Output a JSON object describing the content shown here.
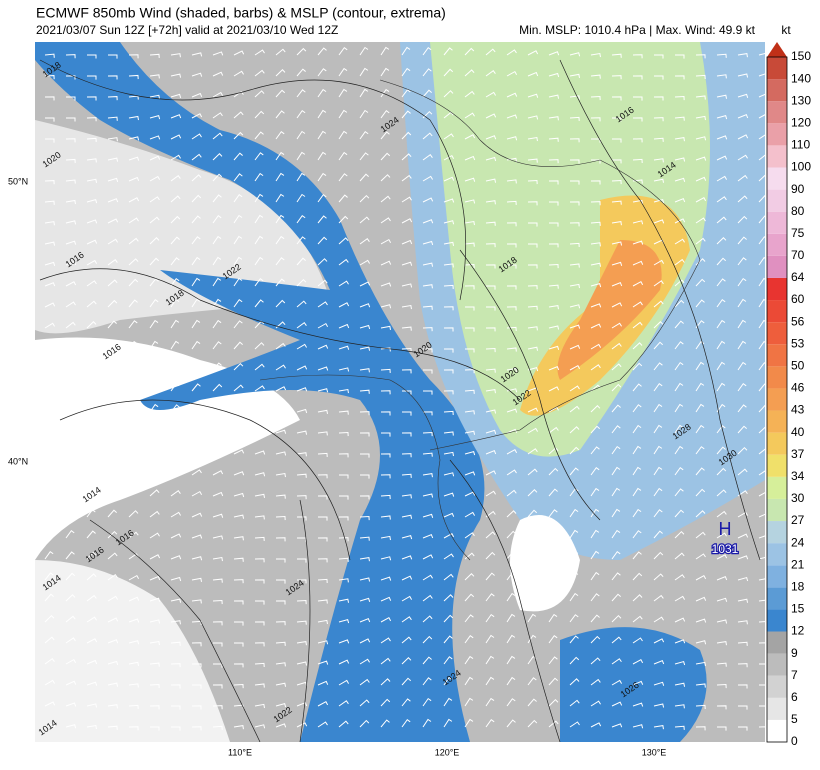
{
  "header": {
    "title": "ECMWF 850mb Wind (shaded, barbs) & MSLP (contour, extrema)",
    "subtitle": "2021/03/07 Sun 12Z [+72h] valid at 2021/03/10 Wed 12Z",
    "info": "Min. MSLP: 1010.4 hPa | Max. Wind: 49.9 kt"
  },
  "map": {
    "lat_labels": [
      "50°N",
      "40°N"
    ],
    "lon_labels": [
      "110°E",
      "120°E",
      "130°E"
    ],
    "contour_labels": [
      "1018",
      "1020",
      "1024",
      "1016",
      "1014",
      "1022",
      "1018",
      "1016",
      "1016",
      "1020",
      "1018",
      "1020",
      "1022",
      "1028",
      "1030",
      "1014",
      "1016",
      "1016",
      "1014",
      "1024",
      "1024",
      "1026",
      "1022",
      "1014"
    ],
    "extrema": {
      "symbol": "H",
      "value": "1031"
    }
  },
  "colorbar": {
    "unit": "kt",
    "top_color": "#c03018",
    "levels": [
      {
        "label": "0",
        "color": "#ffffff"
      },
      {
        "label": "5",
        "color": "#e6e6e6"
      },
      {
        "label": "6",
        "color": "#d2d2d2"
      },
      {
        "label": "7",
        "color": "#bcbcbc"
      },
      {
        "label": "9",
        "color": "#a4a4a4"
      },
      {
        "label": "12",
        "color": "#3a86cf"
      },
      {
        "label": "15",
        "color": "#5b9bd5"
      },
      {
        "label": "18",
        "color": "#7fb1e0"
      },
      {
        "label": "21",
        "color": "#9cc3e4"
      },
      {
        "label": "24",
        "color": "#b5d3e0"
      },
      {
        "label": "27",
        "color": "#c8e7b0"
      },
      {
        "label": "30",
        "color": "#d6ef9a"
      },
      {
        "label": "34",
        "color": "#f0e06a"
      },
      {
        "label": "37",
        "color": "#f4c95c"
      },
      {
        "label": "40",
        "color": "#f5b256"
      },
      {
        "label": "43",
        "color": "#f49e52"
      },
      {
        "label": "46",
        "color": "#f28a4a"
      },
      {
        "label": "50",
        "color": "#f07444"
      },
      {
        "label": "53",
        "color": "#ee5e3c"
      },
      {
        "label": "56",
        "color": "#eb4a36"
      },
      {
        "label": "60",
        "color": "#e83430"
      },
      {
        "label": "64",
        "color": "#e090c0"
      },
      {
        "label": "70",
        "color": "#e8a4cc"
      },
      {
        "label": "75",
        "color": "#eeb8d8"
      },
      {
        "label": "80",
        "color": "#f2cce4"
      },
      {
        "label": "90",
        "color": "#f6dcee"
      },
      {
        "label": "100",
        "color": "#f4c0cc"
      },
      {
        "label": "110",
        "color": "#eaa0a8"
      },
      {
        "label": "120",
        "color": "#e08888"
      },
      {
        "label": "130",
        "color": "#d46a60"
      },
      {
        "label": "140",
        "color": "#c84a38"
      },
      {
        "label": "150",
        "color": null
      }
    ]
  }
}
